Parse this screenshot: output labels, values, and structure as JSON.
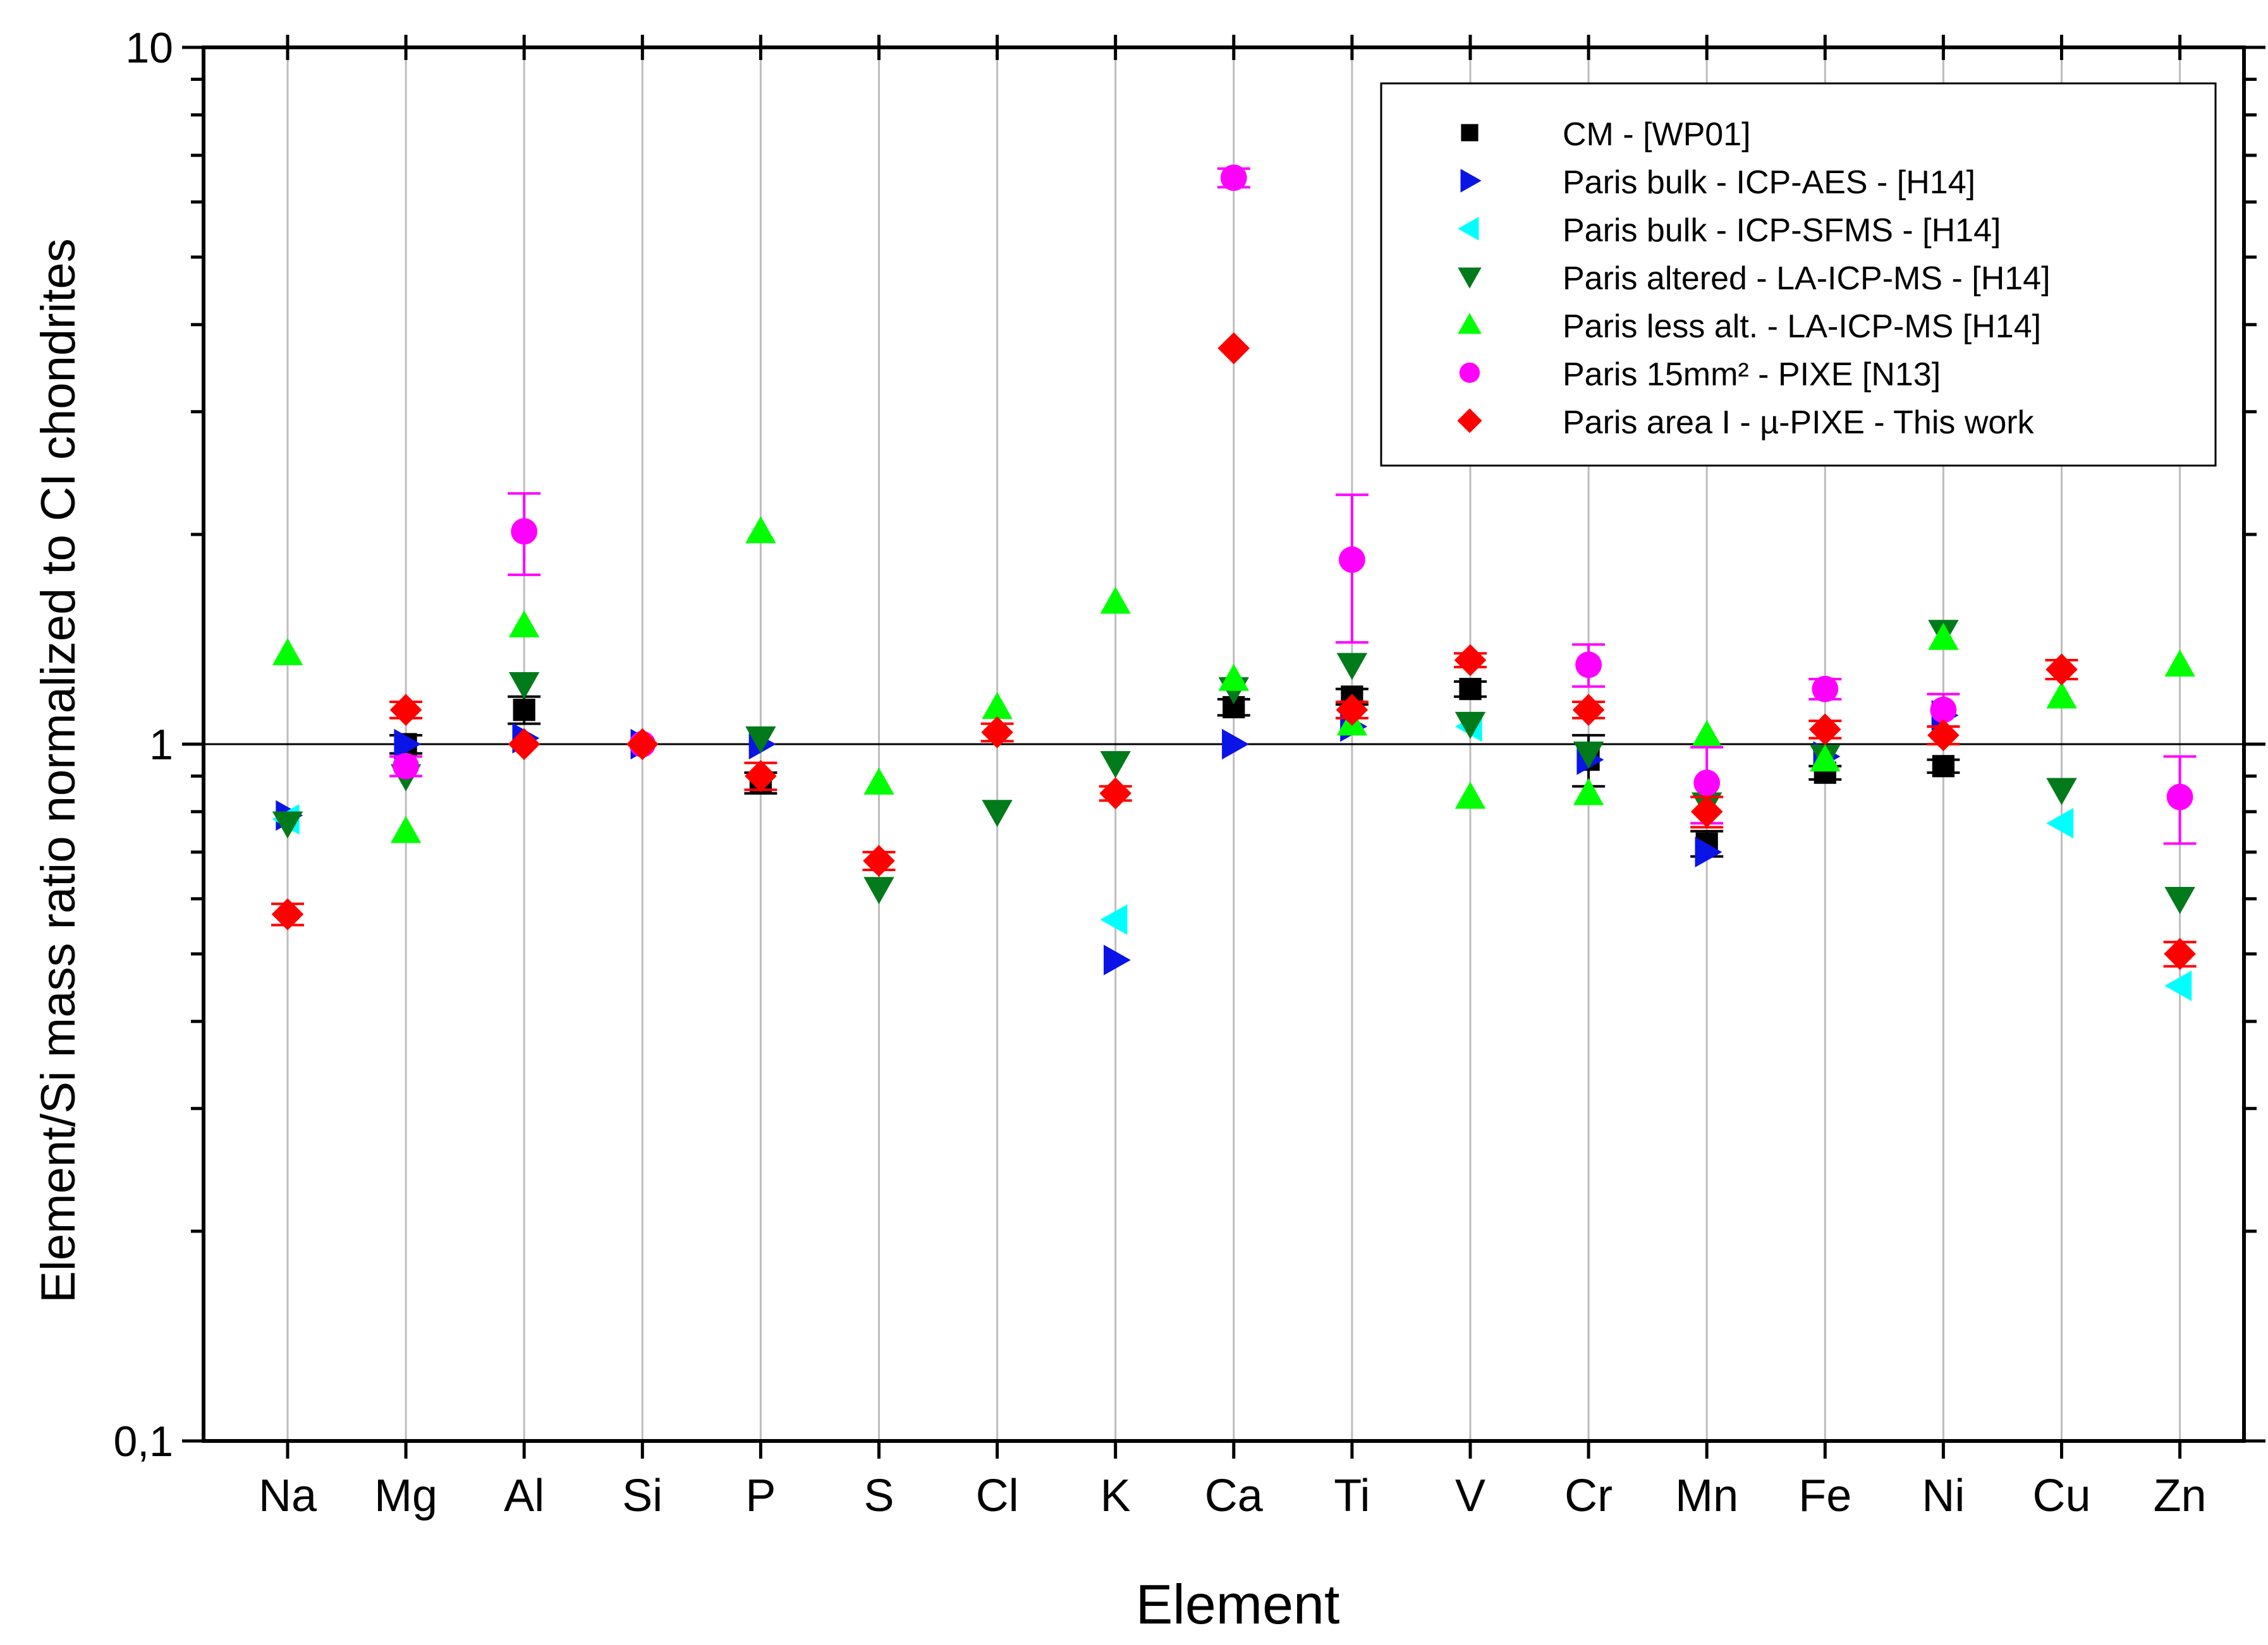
{
  "chart_data": {
    "type": "scatter",
    "title": "",
    "xlabel": "Element",
    "ylabel": "Element/Si mass ratio normalized to CI chondrites",
    "yscale": "log",
    "ylim": [
      0.1,
      10
    ],
    "y_ticks": [
      {
        "value": 0.1,
        "label": "0,1"
      },
      {
        "value": 1,
        "label": "1"
      },
      {
        "value": 10,
        "label": "10"
      }
    ],
    "categories": [
      "Na",
      "Mg",
      "Al",
      "Si",
      "P",
      "S",
      "Cl",
      "K",
      "Ca",
      "Ti",
      "V",
      "Cr",
      "Mn",
      "Fe",
      "Ni",
      "Cu",
      "Zn"
    ],
    "reference_line": 1,
    "grid": "vertical",
    "legend_position": "top-right",
    "series": [
      {
        "name": "CM - [WP01]",
        "marker": "square",
        "color": "#000000",
        "values": [
          null,
          1.0,
          1.12,
          null,
          0.88,
          null,
          null,
          null,
          1.13,
          1.17,
          1.2,
          0.95,
          0.72,
          0.91,
          0.93,
          null,
          null
        ],
        "errors": [
          null,
          0.03,
          0.05,
          null,
          0.03,
          null,
          null,
          null,
          0.03,
          0.03,
          0.03,
          0.08,
          0.03,
          0.02,
          0.02,
          null,
          null
        ]
      },
      {
        "name": "Paris bulk - ICP-AES - [H14]",
        "marker": "triangle-right",
        "color": "#0a14e6",
        "values": [
          0.79,
          1.0,
          1.02,
          1.0,
          1.0,
          null,
          null,
          0.49,
          1.0,
          1.06,
          null,
          0.95,
          0.7,
          0.96,
          1.1,
          null,
          null
        ],
        "errors": null
      },
      {
        "name": "Paris bulk - ICP-SFMS - [H14]",
        "marker": "triangle-left",
        "color": "#00ffff",
        "values": [
          0.78,
          null,
          null,
          null,
          null,
          null,
          null,
          0.56,
          null,
          null,
          1.06,
          null,
          null,
          null,
          null,
          0.77,
          0.45
        ],
        "errors": null
      },
      {
        "name": "Paris altered - LA-ICP-MS - [H14]",
        "marker": "triangle-down",
        "color": "#007a1a",
        "values": [
          0.77,
          0.9,
          1.22,
          null,
          1.02,
          0.62,
          0.8,
          0.94,
          1.2,
          1.3,
          1.07,
          0.97,
          0.82,
          0.96,
          1.45,
          0.86,
          0.6
        ],
        "errors": null
      },
      {
        "name": "Paris less alt. - LA-ICP-MS [H14]",
        "marker": "triangle-up",
        "color": "#00ff00",
        "values": [
          1.35,
          0.75,
          1.48,
          null,
          2.02,
          0.88,
          1.13,
          1.6,
          1.24,
          1.07,
          0.84,
          0.85,
          1.03,
          0.95,
          1.42,
          1.17,
          1.3
        ],
        "errors": null
      },
      {
        "name": "Paris 15mm² - PIXE [N13]",
        "marker": "circle",
        "color": "#ff00ff",
        "values": [
          null,
          0.93,
          2.02,
          1.0,
          null,
          null,
          null,
          null,
          6.5,
          1.84,
          null,
          1.3,
          0.88,
          1.2,
          1.12,
          null,
          0.84
        ],
        "errors": [
          null,
          0.03,
          0.27,
          null,
          null,
          null,
          null,
          null,
          0.2,
          0.44,
          null,
          0.09,
          0.11,
          0.04,
          0.06,
          null,
          0.12
        ]
      },
      {
        "name": "Paris area I - µ-PIXE - This work",
        "marker": "diamond",
        "color": "#ff0000",
        "values": [
          0.57,
          1.12,
          1.0,
          1.0,
          0.9,
          0.68,
          1.04,
          0.85,
          3.7,
          1.12,
          1.32,
          1.12,
          0.8,
          1.05,
          1.03,
          1.28,
          0.5
        ],
        "errors": [
          0.02,
          0.03,
          null,
          null,
          0.04,
          0.02,
          0.03,
          0.02,
          null,
          0.03,
          0.03,
          0.03,
          0.04,
          0.03,
          0.03,
          0.04,
          0.02
        ]
      }
    ]
  }
}
